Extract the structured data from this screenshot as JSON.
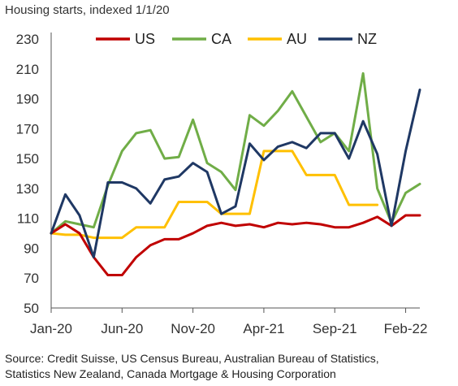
{
  "chart_data": {
    "type": "line",
    "title": "Housing starts, indexed 1/1/20",
    "xlabel": "",
    "ylabel": "",
    "ylim": [
      50,
      230
    ],
    "yticks": [
      50,
      70,
      90,
      110,
      130,
      150,
      170,
      190,
      210,
      230
    ],
    "x_tick_labels": [
      "Jan-20",
      "Jun-20",
      "Nov-20",
      "Apr-21",
      "Sep-21",
      "Feb-22"
    ],
    "x_tick_index": [
      0,
      5,
      10,
      15,
      20,
      25
    ],
    "n_points": 27,
    "legend_position": "top",
    "grid": false,
    "series": [
      {
        "name": "US",
        "color": "#c00000",
        "values": [
          100,
          106,
          100,
          84,
          72,
          72,
          84,
          92,
          96,
          96,
          100,
          105,
          107,
          105,
          106,
          104,
          107,
          106,
          107,
          106,
          104,
          104,
          107,
          111,
          105,
          112,
          112
        ]
      },
      {
        "name": "CA",
        "color": "#70ad47",
        "values": [
          100,
          108,
          106,
          104,
          132,
          155,
          167,
          169,
          150,
          151,
          176,
          147,
          141,
          129,
          179,
          172,
          182,
          195,
          178,
          161,
          167,
          155,
          207,
          130,
          107,
          127,
          133
        ]
      },
      {
        "name": "AU",
        "color": "#ffc000",
        "values": [
          100,
          99,
          99,
          97,
          97,
          97,
          104,
          104,
          104,
          121,
          121,
          121,
          113,
          113,
          113,
          155,
          155,
          155,
          139,
          139,
          139,
          119,
          119,
          119,
          null,
          null,
          null
        ]
      },
      {
        "name": "NZ",
        "color": "#1f3864",
        "values": [
          100,
          126,
          112,
          84,
          134,
          134,
          130,
          120,
          136,
          138,
          147,
          141,
          113,
          118,
          160,
          149,
          158,
          161,
          157,
          167,
          167,
          150,
          175,
          153,
          105,
          155,
          196
        ]
      }
    ]
  },
  "source_line1": "Source: Credit Suisse, US Census Bureau, Australian Bureau of Statistics,",
  "source_line2": "Statistics New Zealand, Canada Mortgage & Housing Corporation"
}
